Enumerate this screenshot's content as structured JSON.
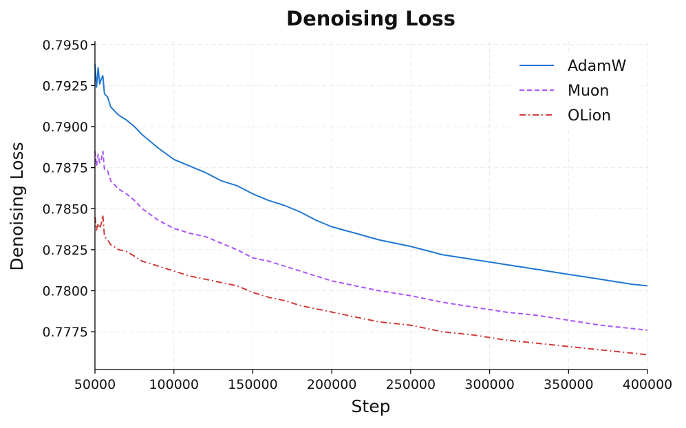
{
  "chart_data": {
    "type": "line",
    "title": "Denoising Loss",
    "xlabel": "Step",
    "ylabel": "Denoising Loss",
    "xlim": [
      50000,
      400000
    ],
    "ylim": [
      0.7752,
      0.7952
    ],
    "xticks": [
      50000,
      100000,
      150000,
      200000,
      250000,
      300000,
      350000,
      400000
    ],
    "xtick_labels": [
      "50000",
      "100000",
      "150000",
      "200000",
      "250000",
      "300000",
      "350000",
      "400000"
    ],
    "yticks": [
      0.7775,
      0.78,
      0.7825,
      0.785,
      0.7875,
      0.79,
      0.7925,
      0.795
    ],
    "ytick_labels": [
      "0.7775",
      "0.7800",
      "0.7825",
      "0.7850",
      "0.7875",
      "0.7900",
      "0.7925",
      "0.7950"
    ],
    "grid": true,
    "legend_position": "top-right",
    "series": [
      {
        "name": "AdamW",
        "color": "#1f77d4",
        "style": "solid",
        "x": [
          50000,
          51000,
          52000,
          53000,
          54000,
          55000,
          56000,
          58000,
          60000,
          62000,
          65000,
          70000,
          75000,
          80000,
          90000,
          100000,
          110000,
          120000,
          130000,
          140000,
          150000,
          160000,
          170000,
          180000,
          190000,
          200000,
          215000,
          230000,
          250000,
          270000,
          290000,
          310000,
          330000,
          350000,
          370000,
          390000,
          400000
        ],
        "y": [
          0.7938,
          0.7924,
          0.7936,
          0.7926,
          0.7929,
          0.7931,
          0.792,
          0.7918,
          0.7912,
          0.791,
          0.7907,
          0.7904,
          0.79,
          0.7895,
          0.7887,
          0.788,
          0.7876,
          0.7872,
          0.7867,
          0.7864,
          0.7859,
          0.7855,
          0.7852,
          0.7848,
          0.7843,
          0.7839,
          0.7835,
          0.7831,
          0.7827,
          0.7822,
          0.7819,
          0.7816,
          0.7813,
          0.781,
          0.7807,
          0.7804,
          0.7803
        ]
      },
      {
        "name": "Muon",
        "color": "#a855f7",
        "style": "dashed",
        "x": [
          50000,
          51000,
          52000,
          53000,
          54000,
          55000,
          56000,
          58000,
          60000,
          62000,
          65000,
          70000,
          75000,
          80000,
          90000,
          100000,
          110000,
          120000,
          130000,
          140000,
          150000,
          160000,
          170000,
          180000,
          190000,
          200000,
          215000,
          230000,
          250000,
          270000,
          290000,
          310000,
          330000,
          350000,
          370000,
          390000,
          400000
        ],
        "y": [
          0.7885,
          0.7876,
          0.7883,
          0.7878,
          0.788,
          0.7885,
          0.7874,
          0.7873,
          0.7867,
          0.7865,
          0.7862,
          0.7859,
          0.7855,
          0.785,
          0.7843,
          0.7838,
          0.7835,
          0.7833,
          0.7829,
          0.7825,
          0.782,
          0.7818,
          0.7815,
          0.7812,
          0.7809,
          0.7806,
          0.7803,
          0.78,
          0.7797,
          0.7793,
          0.779,
          0.7787,
          0.7785,
          0.7782,
          0.7779,
          0.7777,
          0.7776
        ]
      },
      {
        "name": "OLion",
        "color": "#d13a3a",
        "style": "dashdot",
        "x": [
          50000,
          51000,
          52000,
          53000,
          54000,
          55000,
          56000,
          58000,
          60000,
          62000,
          65000,
          70000,
          75000,
          80000,
          90000,
          100000,
          110000,
          120000,
          130000,
          140000,
          150000,
          160000,
          170000,
          180000,
          190000,
          200000,
          215000,
          230000,
          250000,
          270000,
          290000,
          310000,
          330000,
          350000,
          370000,
          390000,
          400000
        ],
        "y": [
          0.7845,
          0.7837,
          0.7841,
          0.7838,
          0.7841,
          0.7846,
          0.7833,
          0.7831,
          0.7828,
          0.7827,
          0.7825,
          0.7824,
          0.7821,
          0.7818,
          0.7815,
          0.7812,
          0.7809,
          0.7807,
          0.7805,
          0.7803,
          0.7799,
          0.7796,
          0.7794,
          0.7791,
          0.7789,
          0.7787,
          0.7784,
          0.7781,
          0.7779,
          0.7775,
          0.7773,
          0.777,
          0.7768,
          0.7766,
          0.7764,
          0.7762,
          0.7761
        ]
      }
    ]
  }
}
